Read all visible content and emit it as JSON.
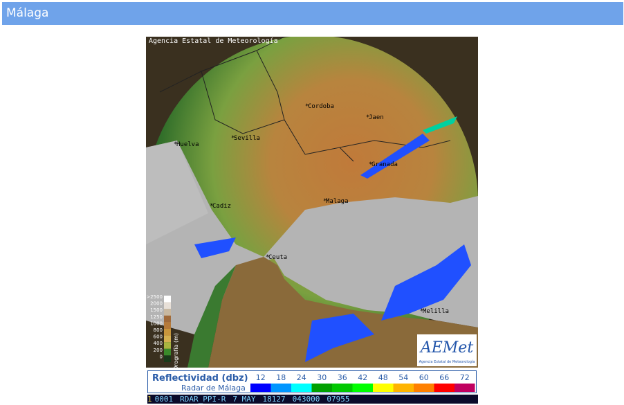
{
  "header": {
    "title": "Málaga"
  },
  "radar": {
    "copyright": "Agencia Estatal de Meteorología",
    "cities": [
      "Cordoba",
      "Jaen",
      "Sevilla",
      "Huelva",
      "Granada",
      "Malaga",
      "Cadiz",
      "Ceuta",
      "Melilla"
    ],
    "logo": "AEMet",
    "logo_caption": "Agencia Estatal de Meteorología"
  },
  "orography": {
    "title": "Orografía (m)",
    "ticks": [
      ">2500",
      "2000",
      "1500",
      "1250",
      "1000",
      "800",
      "600",
      "400",
      "200",
      "0"
    ],
    "colors": [
      "#ffffff",
      "#e8e0d8",
      "#c8b8a0",
      "#a06a3a",
      "#b57a3a",
      "#c8963c",
      "#d4b050",
      "#a8b440",
      "#3a8a2a",
      "#1a3a1a"
    ]
  },
  "legend": {
    "title": "Reflectividad (dbz)",
    "subtitle": "Radar de Málaga",
    "levels": [
      12,
      18,
      24,
      30,
      36,
      42,
      48,
      54,
      60,
      66,
      72
    ],
    "colors": [
      "#0000ff",
      "#0096ff",
      "#00ffff",
      "#00a000",
      "#00c800",
      "#00ff00",
      "#ffff00",
      "#ffb400",
      "#ff8000",
      "#ff0000",
      "#c00060"
    ]
  },
  "status": [
    "1",
    "0001",
    "RDAR_PPI-R",
    "7 MAY",
    "18127",
    "043000",
    "07955"
  ]
}
